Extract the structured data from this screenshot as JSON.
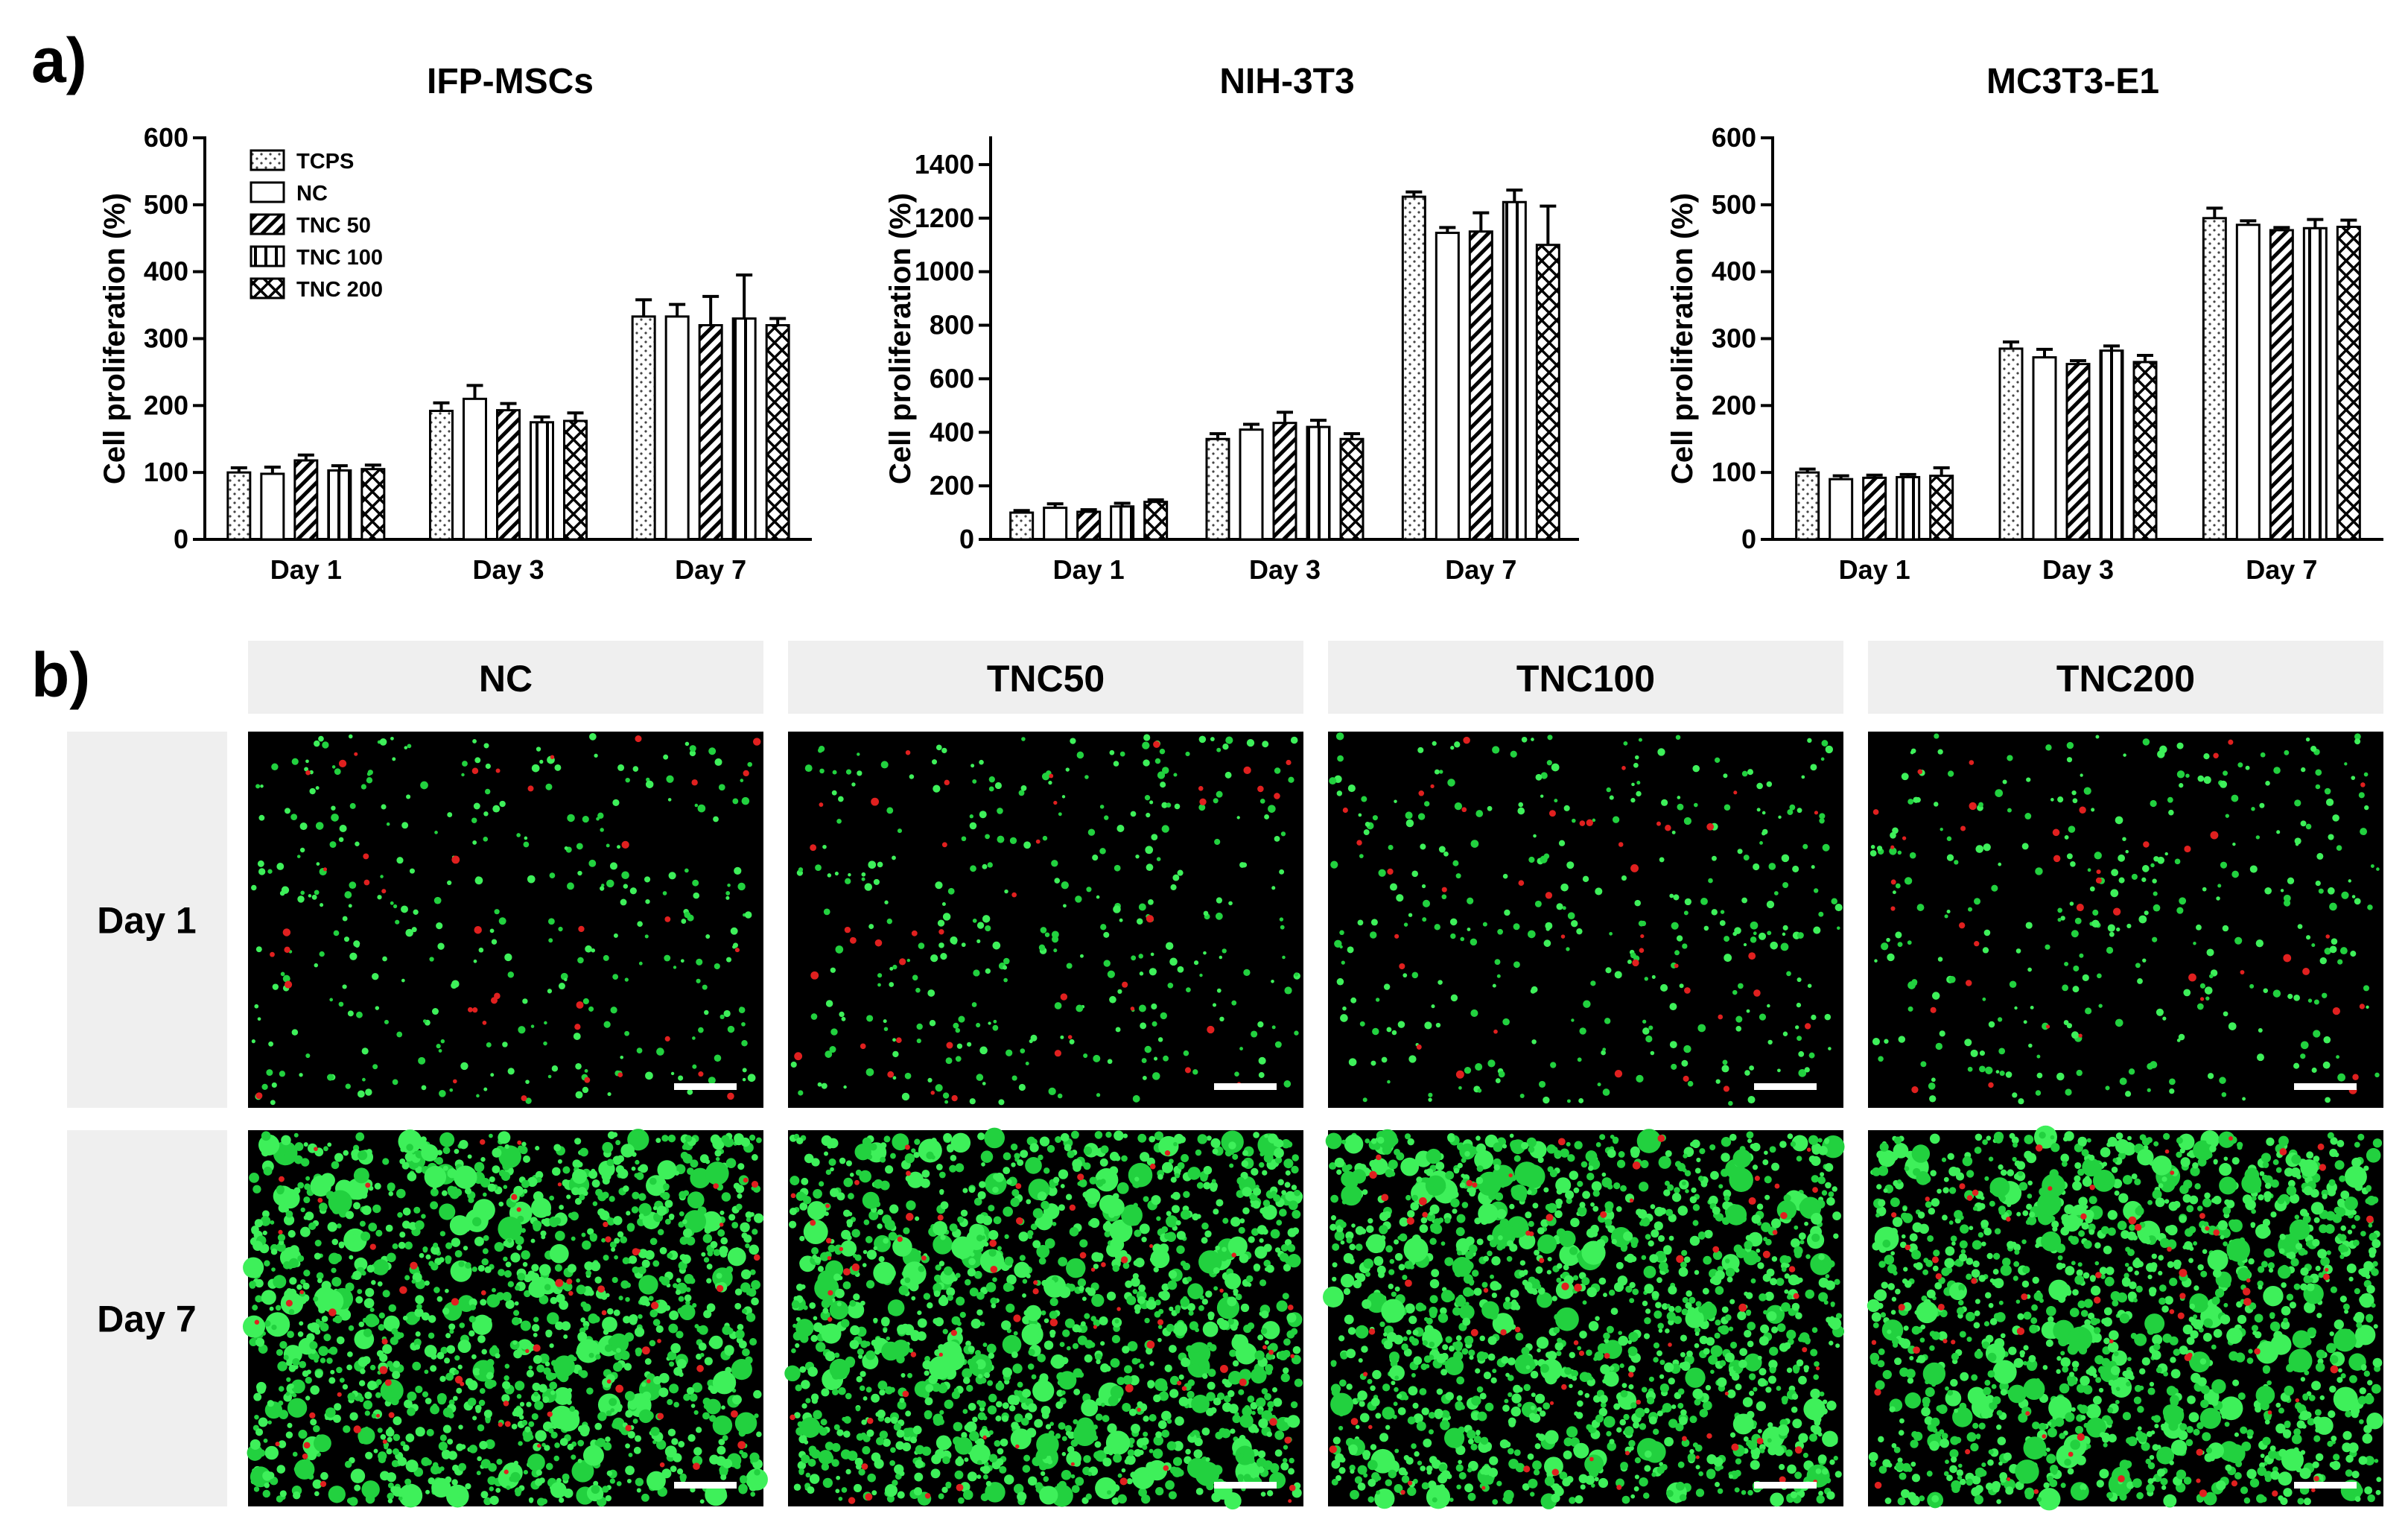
{
  "panel_a_label": "a)",
  "panel_b_label": "b)",
  "chart_data": [
    {
      "type": "bar",
      "title": "IFP-MSCs",
      "ylabel": "Cell proliferation (%)",
      "xlabel": "",
      "categories": [
        "Day 1",
        "Day 3",
        "Day 7"
      ],
      "ylim": [
        0,
        600
      ],
      "yticks": [
        0,
        100,
        200,
        300,
        400,
        500,
        600
      ],
      "legend": "top-left",
      "series": [
        {
          "name": "TCPS",
          "pattern": "dots",
          "values": [
            100,
            192,
            333
          ],
          "errors": [
            7,
            12,
            25
          ]
        },
        {
          "name": "NC",
          "pattern": "blank",
          "values": [
            98,
            210,
            333
          ],
          "errors": [
            10,
            20,
            18
          ]
        },
        {
          "name": "TNC 50",
          "pattern": "diagonal",
          "values": [
            118,
            193,
            320
          ],
          "errors": [
            8,
            10,
            43
          ]
        },
        {
          "name": "TNC 100",
          "pattern": "vertical",
          "values": [
            103,
            175,
            330
          ],
          "errors": [
            7,
            8,
            65
          ]
        },
        {
          "name": "TNC 200",
          "pattern": "crosshatch",
          "values": [
            105,
            177,
            320
          ],
          "errors": [
            6,
            12,
            10
          ]
        }
      ]
    },
    {
      "type": "bar",
      "title": "NIH-3T3",
      "ylabel": "Cell proliferation (%)",
      "xlabel": "",
      "categories": [
        "Day 1",
        "Day 3",
        "Day 7"
      ],
      "ylim": [
        0,
        1500
      ],
      "yticks": [
        0,
        200,
        400,
        600,
        800,
        1000,
        1200,
        1400
      ],
      "series": [
        {
          "name": "TCPS",
          "pattern": "dots",
          "values": [
            100,
            375,
            1280
          ],
          "errors": [
            8,
            20,
            18
          ]
        },
        {
          "name": "NC",
          "pattern": "blank",
          "values": [
            118,
            410,
            1145
          ],
          "errors": [
            15,
            20,
            20
          ]
        },
        {
          "name": "TNC 50",
          "pattern": "diagonal",
          "values": [
            103,
            435,
            1150
          ],
          "errors": [
            8,
            40,
            70
          ]
        },
        {
          "name": "TNC 100",
          "pattern": "vertical",
          "values": [
            123,
            420,
            1260
          ],
          "errors": [
            12,
            25,
            45
          ]
        },
        {
          "name": "TNC 200",
          "pattern": "crosshatch",
          "values": [
            140,
            375,
            1100
          ],
          "errors": [
            8,
            20,
            145
          ]
        }
      ]
    },
    {
      "type": "bar",
      "title": "MC3T3-E1",
      "ylabel": "Cell proliferation (%)",
      "xlabel": "",
      "categories": [
        "Day 1",
        "Day 3",
        "Day 7"
      ],
      "ylim": [
        0,
        600
      ],
      "yticks": [
        0,
        100,
        200,
        300,
        400,
        500,
        600
      ],
      "series": [
        {
          "name": "TCPS",
          "pattern": "dots",
          "values": [
            100,
            285,
            480
          ],
          "errors": [
            5,
            10,
            15
          ]
        },
        {
          "name": "NC",
          "pattern": "blank",
          "values": [
            90,
            272,
            470
          ],
          "errors": [
            5,
            12,
            6
          ]
        },
        {
          "name": "TNC 50",
          "pattern": "diagonal",
          "values": [
            92,
            262,
            462
          ],
          "errors": [
            4,
            5,
            4
          ]
        },
        {
          "name": "TNC 100",
          "pattern": "vertical",
          "values": [
            93,
            282,
            465
          ],
          "errors": [
            4,
            7,
            13
          ]
        },
        {
          "name": "TNC 200",
          "pattern": "crosshatch",
          "values": [
            95,
            265,
            467
          ],
          "errors": [
            12,
            10,
            10
          ]
        }
      ]
    }
  ],
  "micrographs": {
    "columns": [
      "NC",
      "TNC50",
      "TNC100",
      "TNC200"
    ],
    "rows": [
      "Day 1",
      "Day 7"
    ]
  }
}
